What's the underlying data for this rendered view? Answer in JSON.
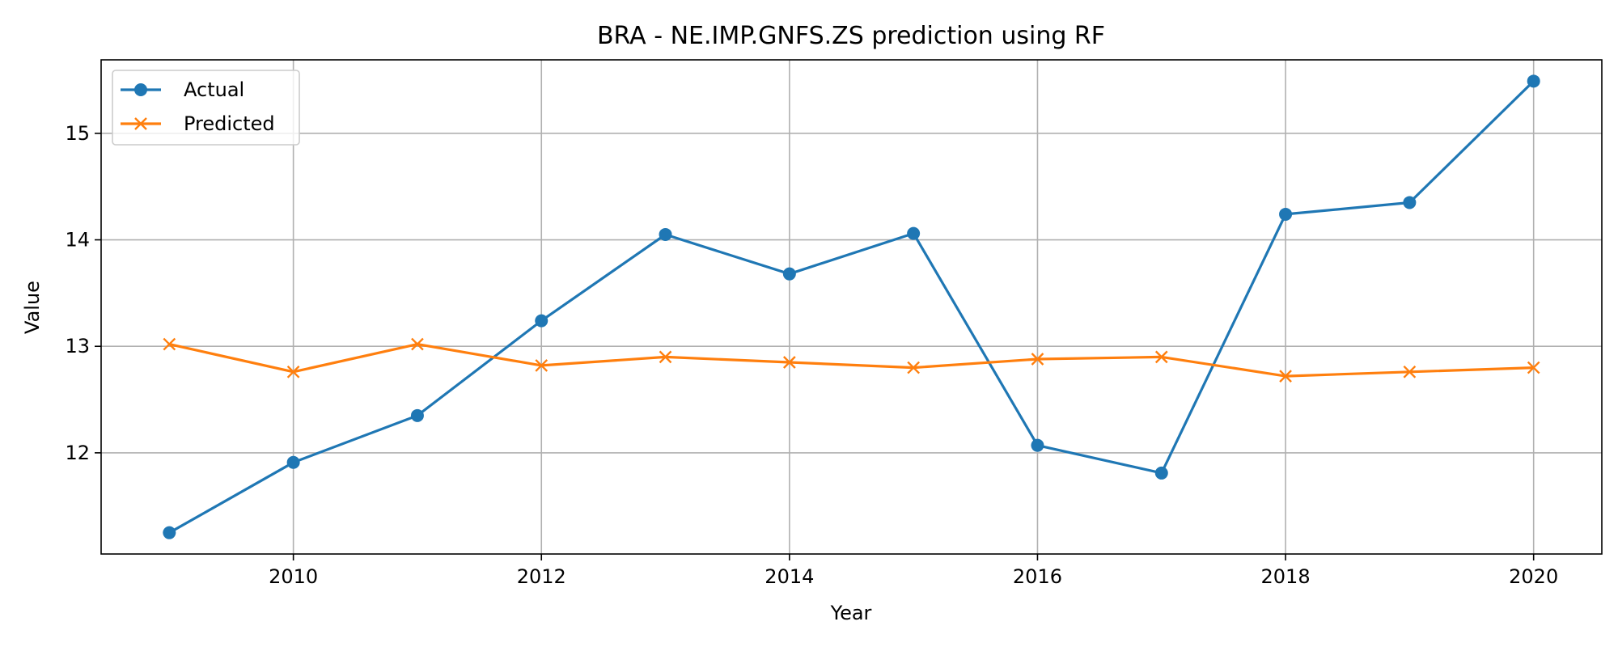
{
  "chart_data": {
    "type": "line",
    "title": "BRA - NE.IMP.GNFS.ZS prediction using RF",
    "xlabel": "Year",
    "ylabel": "Value",
    "x": [
      2009,
      2010,
      2011,
      2012,
      2013,
      2014,
      2015,
      2016,
      2017,
      2018,
      2019,
      2020
    ],
    "xlim": [
      2008.45,
      2020.55
    ],
    "ylim": [
      11.05,
      15.69
    ],
    "x_ticks": [
      2010,
      2012,
      2014,
      2016,
      2018,
      2020
    ],
    "y_ticks": [
      12,
      13,
      14,
      15
    ],
    "grid": true,
    "legend_position": "top-left",
    "series": [
      {
        "name": "Actual",
        "color": "#1f77b4",
        "marker": "circle",
        "values": [
          11.25,
          11.91,
          12.35,
          13.24,
          14.05,
          13.68,
          14.06,
          12.07,
          11.81,
          14.24,
          14.35,
          15.49
        ]
      },
      {
        "name": "Predicted",
        "color": "#ff7f0e",
        "marker": "x",
        "values": [
          13.02,
          12.76,
          13.02,
          12.82,
          12.9,
          12.85,
          12.8,
          12.88,
          12.9,
          12.72,
          12.76,
          12.8
        ]
      }
    ]
  }
}
